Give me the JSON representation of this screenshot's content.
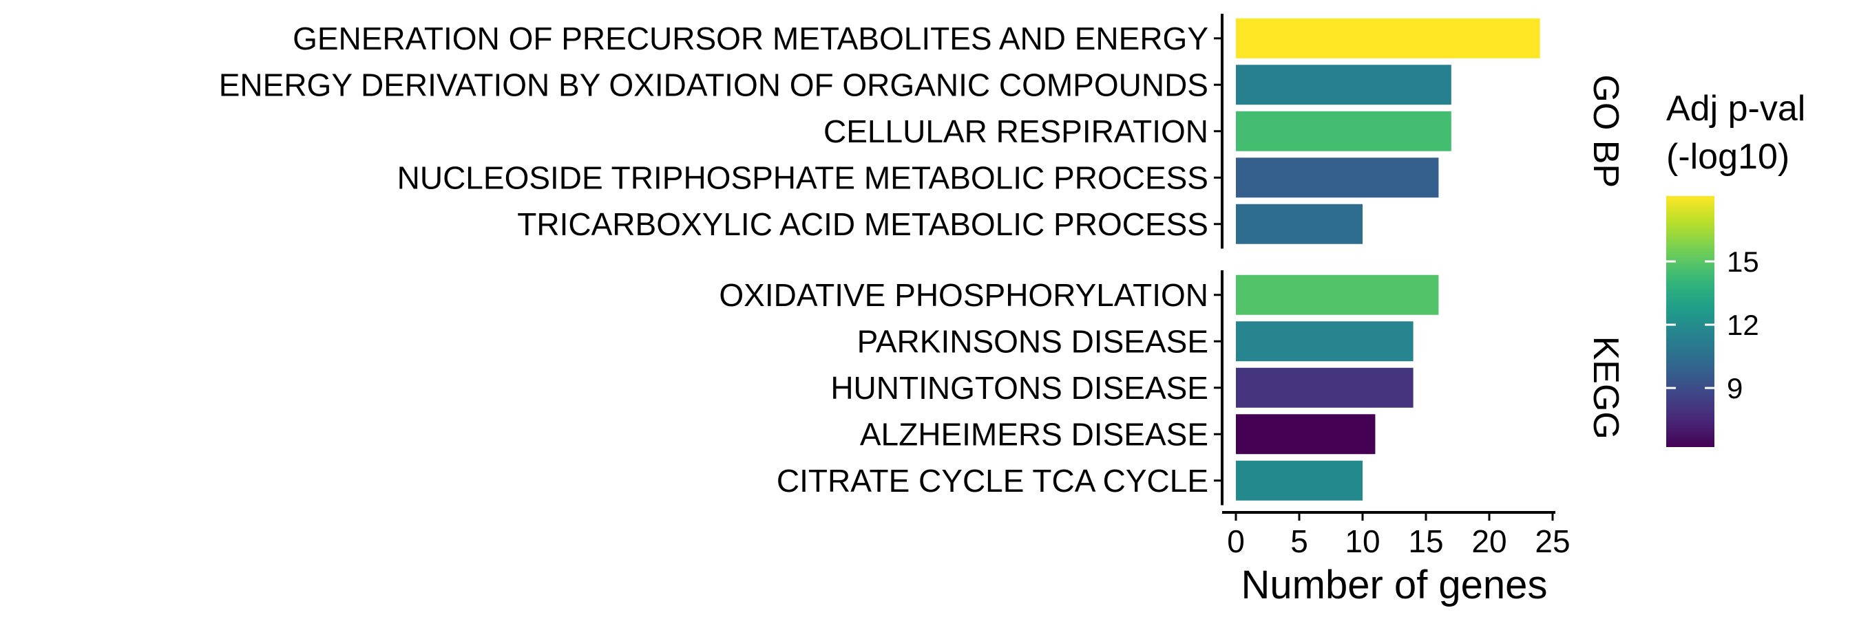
{
  "chart_data": {
    "type": "bar",
    "orientation": "horizontal",
    "xlabel": "Number of genes",
    "xlim": [
      0,
      25
    ],
    "xticks": [
      0,
      5,
      10,
      15,
      20,
      25
    ],
    "grid": false,
    "legend": {
      "title": [
        "Adj p-val",
        "(-log10)"
      ],
      "position": "right",
      "type": "colorbar",
      "scale": "viridis",
      "range": [
        6.2,
        18.1
      ],
      "ticks": [
        9,
        12,
        15
      ]
    },
    "panels": [
      {
        "label": "GO BP",
        "categories": [
          "GENERATION OF PRECURSOR METABOLITES AND ENERGY",
          "ENERGY DERIVATION BY OXIDATION OF ORGANIC COMPOUNDS",
          "CELLULAR RESPIRATION",
          "NUCLEOSIDE TRIPHOSPHATE METABOLIC PROCESS",
          "TRICARBOXYLIC ACID METABOLIC PROCESS"
        ],
        "values": [
          24,
          17,
          17,
          16,
          10
        ],
        "color_values": [
          18.1,
          11.4,
          14.5,
          9.8,
          10.4
        ]
      },
      {
        "label": "KEGG",
        "categories": [
          "OXIDATIVE PHOSPHORYLATION",
          "PARKINSONS DISEASE",
          "HUNTINGTONS DISEASE",
          "ALZHEIMERS DISEASE",
          "CITRATE CYCLE TCA CYCLE"
        ],
        "values": [
          16,
          14,
          14,
          11,
          10
        ],
        "color_values": [
          14.8,
          11.6,
          8.0,
          6.2,
          11.8
        ]
      }
    ]
  }
}
